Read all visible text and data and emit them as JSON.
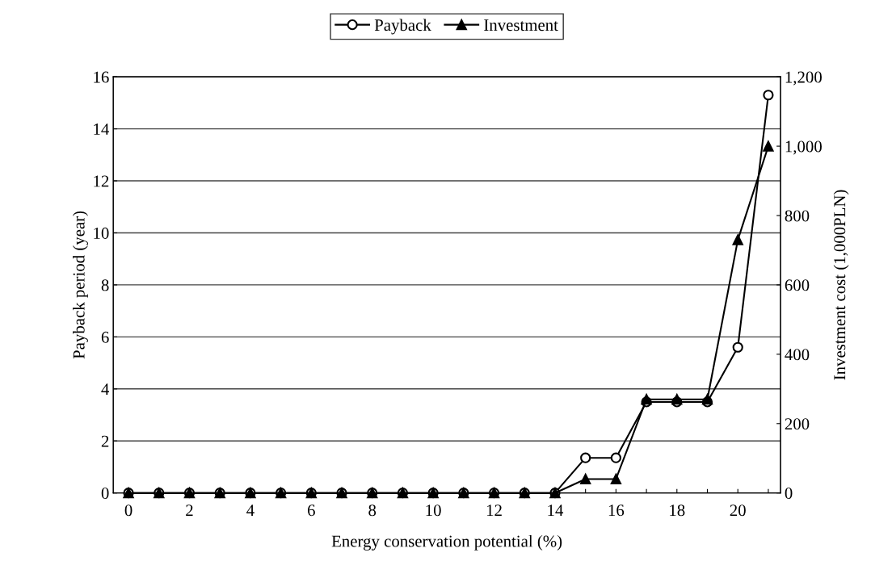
{
  "chart_data": {
    "type": "line",
    "xlabel": "Energy conservation potential (%)",
    "ylabel": "Payback period (year)",
    "y2label": "Investment cost (1,000PLN)",
    "x": [
      0,
      1,
      2,
      3,
      4,
      5,
      6,
      7,
      8,
      9,
      10,
      11,
      12,
      13,
      14,
      15,
      16,
      17,
      18,
      19,
      20,
      21
    ],
    "series": [
      {
        "name": "Payback",
        "color": "#000000",
        "marker": "circle",
        "values": [
          0,
          0,
          0,
          0,
          0,
          0,
          0,
          0,
          0,
          0,
          0,
          0,
          0,
          0,
          0,
          1.35,
          1.35,
          3.5,
          3.5,
          3.5,
          5.6,
          15.3
        ]
      },
      {
        "name": "Investment",
        "color": "#000000",
        "marker": "triangle",
        "axis": "y2",
        "values": [
          0,
          0,
          0,
          0,
          0,
          0,
          0,
          0,
          0,
          0,
          0,
          0,
          0,
          0,
          0,
          40,
          40,
          270,
          270,
          270,
          730,
          1000
        ]
      }
    ],
    "xlim": [
      -0.5,
      21.4
    ],
    "xticks": [
      0,
      {
        "value": 1,
        "label": null
      },
      2,
      {
        "value": 3,
        "label": null
      },
      4,
      {
        "value": 5,
        "label": null
      },
      6,
      {
        "value": 7,
        "label": null
      },
      8,
      {
        "value": 9,
        "label": null
      },
      10,
      {
        "value": 11,
        "label": null
      },
      12,
      {
        "value": 13,
        "label": null
      },
      14,
      {
        "value": 15,
        "label": null
      },
      16,
      {
        "value": 17,
        "label": null
      },
      18,
      {
        "value": 19,
        "label": null
      },
      20,
      {
        "value": 21,
        "label": null
      }
    ],
    "ylim": [
      0,
      16
    ],
    "yticks": [
      0,
      2,
      4,
      6,
      8,
      10,
      12,
      14,
      16
    ],
    "y2lim": [
      0,
      1200
    ],
    "y2ticks": [
      0,
      200,
      400,
      600,
      800,
      {
        "value": 1000,
        "label": "1,000"
      },
      {
        "value": 1200,
        "label": "1,200"
      }
    ],
    "grid": "y",
    "legend": "top",
    "line_style": "solid"
  }
}
